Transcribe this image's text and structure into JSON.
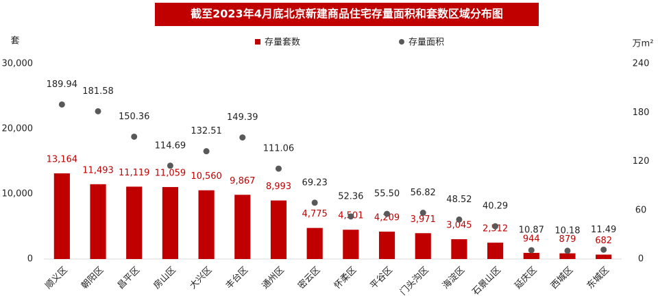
{
  "chart_data": {
    "type": "bar",
    "title": "截至2023年4月底北京新建商品住宅存量面积和套数区域分布图",
    "y_label": "套",
    "y2_label": "万m²",
    "categories": [
      "顺义区",
      "朝阳区",
      "昌平区",
      "房山区",
      "大兴区",
      "丰台区",
      "通州区",
      "密云区",
      "怀柔区",
      "平谷区",
      "门头沟区",
      "海淀区",
      "石景山区",
      "延庆区",
      "西城区",
      "东城区"
    ],
    "series": [
      {
        "name": "存量套数",
        "type": "bar",
        "color": "#c00000",
        "label_color": "#c00000",
        "values": [
          13164,
          11493,
          11119,
          11059,
          10560,
          9867,
          8993,
          4775,
          4501,
          4209,
          3971,
          3045,
          2512,
          944,
          879,
          682
        ],
        "value_labels": [
          "13,164",
          "11,493",
          "11,119",
          "11,059",
          "10,560",
          "9,867",
          "8,993",
          "4,775",
          "4,501",
          "4,209",
          "3,971",
          "3,045",
          "2,512",
          "944",
          "879",
          "682"
        ]
      },
      {
        "name": "存量面积",
        "type": "scatter",
        "axis": "y2",
        "color": "#595959",
        "label_color": "#222222",
        "values": [
          189.94,
          181.58,
          150.36,
          114.69,
          132.51,
          149.39,
          111.06,
          69.23,
          52.36,
          55.5,
          56.82,
          48.52,
          40.29,
          10.87,
          10.18,
          11.49
        ],
        "value_labels": [
          "189.94",
          "181.58",
          "150.36",
          "114.69",
          "132.51",
          "149.39",
          "111.06",
          "69.23",
          "52.36",
          "55.50",
          "56.82",
          "48.52",
          "40.29",
          "10.87",
          "10.18",
          "11.49"
        ]
      }
    ],
    "ylim": [
      0,
      30000
    ],
    "yticks": [
      0,
      {
        "value": 10000,
        "label": "10,000"
      },
      {
        "value": 20000,
        "label": "20,000"
      },
      {
        "value": 30000,
        "label": "30,000"
      }
    ],
    "y2lim": [
      0,
      240
    ],
    "y2ticks": [
      0,
      60,
      120,
      180,
      240
    ],
    "legend": "top",
    "grid": false,
    "title_color": "#c00000"
  }
}
